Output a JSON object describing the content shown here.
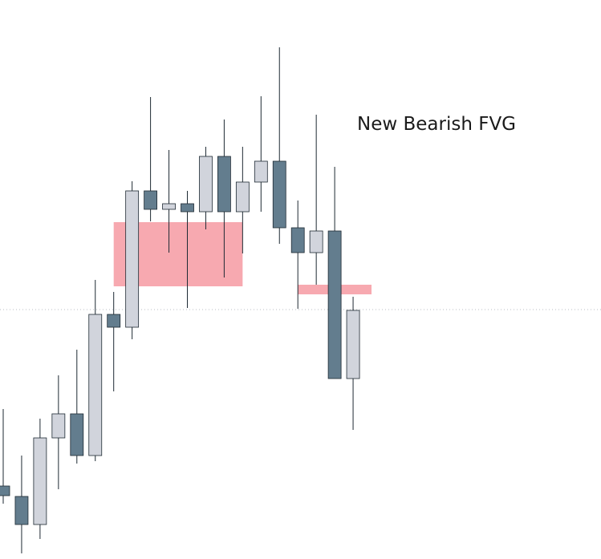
{
  "chart_data": {
    "type": "candlestick",
    "annotation": "New Bearish FVG",
    "open": [
      91,
      78,
      43,
      151,
      181,
      129,
      305,
      289,
      459,
      436,
      443,
      433,
      502,
      433,
      470,
      496,
      413,
      382,
      409,
      225
    ],
    "high": [
      187,
      129,
      175,
      229,
      261,
      348,
      333,
      471,
      576,
      510,
      459,
      514,
      548,
      514,
      577,
      638,
      447,
      554,
      489,
      327
    ],
    "low": [
      69,
      7,
      25,
      87,
      119,
      122,
      209,
      274,
      421,
      382,
      313,
      411,
      351,
      381,
      433,
      393,
      312,
      342,
      225,
      161
    ],
    "close": [
      79,
      43,
      151,
      181,
      129,
      305,
      289,
      459,
      436,
      443,
      433,
      502,
      433,
      470,
      496,
      413,
      382,
      409,
      225,
      310
    ],
    "up_color": "#d1d4dc",
    "down_color": "#637d8e",
    "wick_color": "#1e2a33",
    "zones": [
      {
        "top": 420,
        "bottom": 340,
        "from_candle": 6,
        "to_candle": 13
      },
      {
        "top": 342,
        "bottom": 330,
        "from_candle": 16,
        "to_candle": 20
      }
    ],
    "zone_color": "#f7a9b0",
    "price_line": 311,
    "ylim": [
      0,
      697
    ]
  }
}
